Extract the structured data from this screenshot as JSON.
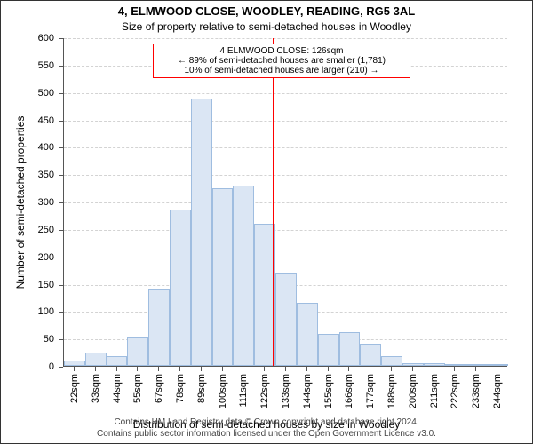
{
  "chart": {
    "type": "histogram",
    "title_main": "4, ELMWOOD CLOSE, WOODLEY, READING, RG5 3AL",
    "title_sub": "Size of property relative to semi-detached houses in Woodley",
    "title_fontsize": 13,
    "subtitle_fontsize": 12,
    "x_axis_label": "Distribution of semi-detached houses by size in Woodley",
    "y_axis_label": "Number of semi-detached properties",
    "axis_label_fontsize": 12,
    "tick_fontsize": 11,
    "ylim": [
      0,
      600
    ],
    "ytick_step": 50,
    "x_categories": [
      "22sqm",
      "33sqm",
      "44sqm",
      "55sqm",
      "67sqm",
      "78sqm",
      "89sqm",
      "100sqm",
      "111sqm",
      "122sqm",
      "133sqm",
      "144sqm",
      "155sqm",
      "166sqm",
      "177sqm",
      "188sqm",
      "200sqm",
      "211sqm",
      "222sqm",
      "233sqm",
      "244sqm"
    ],
    "values": [
      10,
      25,
      18,
      52,
      140,
      285,
      488,
      325,
      330,
      260,
      170,
      115,
      58,
      62,
      40,
      18,
      5,
      5,
      3,
      2,
      2
    ],
    "bar_fill": "#dbe6f4",
    "bar_stroke": "#9fbde0",
    "background": "#ffffff",
    "grid_color": "#d3d3d3",
    "axis_color": "#555555",
    "marker": {
      "value_sqm": 126,
      "color": "#ff0000",
      "annotation_lines": [
        "4 ELMWOOD CLOSE: 126sqm",
        "← 89% of semi-detached houses are smaller (1,781)",
        "10% of semi-detached houses are larger (210) →"
      ],
      "annotation_border": "#ff0000",
      "annotation_fontsize": 10
    },
    "footer_lines": [
      "Contains HM Land Registry data © Crown copyright and database right 2024.",
      "Contains public sector information licensed under the Open Government Licence v3.0."
    ],
    "footer_fontsize": 10,
    "footer_color": "#444444"
  }
}
